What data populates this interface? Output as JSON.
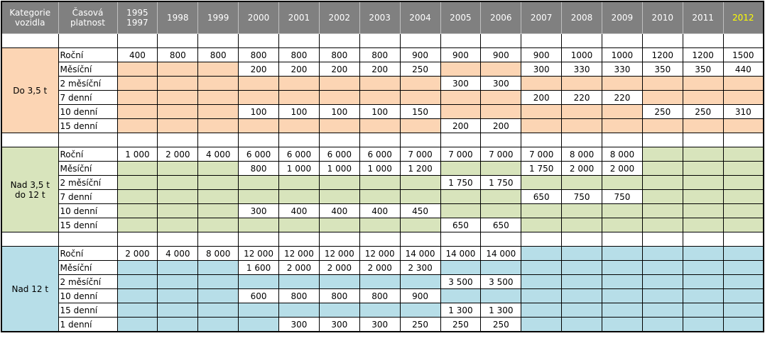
{
  "table": {
    "header": [
      "Kategorie\nvozidla",
      "Časová\nplatnost",
      "1995\n1997",
      "1998",
      "1999",
      "2000",
      "2001",
      "2002",
      "2003",
      "2004",
      "2005",
      "2006",
      "2007",
      "2008",
      "2009",
      "2010",
      "2011",
      "2012"
    ],
    "groups": [
      {
        "category": "Do 3,5 t",
        "rows": [
          {
            "period": "Roční",
            "cells": [
              "400",
              "800",
              "800",
              "800",
              "800",
              "800",
              "800",
              "900",
              "900",
              "900",
              "900",
              "1000",
              "1000",
              "1200",
              "1200",
              "1500"
            ]
          },
          {
            "period": "Měsíční",
            "cells": [
              null,
              null,
              null,
              "200",
              "200",
              "200",
              "200",
              "250",
              null,
              null,
              "300",
              "330",
              "330",
              "350",
              "350",
              "440"
            ]
          },
          {
            "period": "2 měsíční",
            "cells": [
              null,
              null,
              null,
              null,
              null,
              null,
              null,
              null,
              "300",
              "300",
              null,
              null,
              null,
              null,
              null,
              null
            ]
          },
          {
            "period": "7 denní",
            "cells": [
              null,
              null,
              null,
              null,
              null,
              null,
              null,
              null,
              null,
              null,
              "200",
              "220",
              "220",
              null,
              null,
              null
            ]
          },
          {
            "period": "10 denní",
            "cells": [
              null,
              null,
              null,
              "100",
              "100",
              "100",
              "100",
              "150",
              null,
              null,
              null,
              null,
              null,
              "250",
              "250",
              "310"
            ]
          },
          {
            "period": "15 denní",
            "cells": [
              null,
              null,
              null,
              null,
              null,
              null,
              null,
              null,
              "200",
              "200",
              null,
              null,
              null,
              null,
              null,
              null
            ]
          }
        ]
      },
      {
        "category": "Nad 3,5 t\ndo 12 t",
        "rows": [
          {
            "period": "Roční",
            "cells": [
              "1 000",
              "2 000",
              "4 000",
              "6 000",
              "6 000",
              "6 000",
              "6 000",
              "7 000",
              "7 000",
              "7 000",
              "7 000",
              "8 000",
              "8 000",
              null,
              null,
              null
            ]
          },
          {
            "period": "Měsíční",
            "cells": [
              null,
              null,
              null,
              "800",
              "1 000",
              "1 000",
              "1 000",
              "1 200",
              null,
              null,
              "1 750",
              "2 000",
              "2 000",
              null,
              null,
              null
            ]
          },
          {
            "period": "2 měsíční",
            "cells": [
              null,
              null,
              null,
              null,
              null,
              null,
              null,
              null,
              "1 750",
              "1 750",
              null,
              null,
              null,
              null,
              null,
              null
            ]
          },
          {
            "period": "7 denní",
            "cells": [
              null,
              null,
              null,
              null,
              null,
              null,
              null,
              null,
              null,
              null,
              "650",
              "750",
              "750",
              null,
              null,
              null
            ]
          },
          {
            "period": "10 denní",
            "cells": [
              null,
              null,
              null,
              "300",
              "400",
              "400",
              "400",
              "450",
              null,
              null,
              null,
              null,
              null,
              null,
              null,
              null
            ]
          },
          {
            "period": "15 denní",
            "cells": [
              null,
              null,
              null,
              null,
              null,
              null,
              null,
              null,
              "650",
              "650",
              null,
              null,
              null,
              null,
              null,
              null
            ]
          }
        ]
      },
      {
        "category": "Nad 12 t",
        "rows": [
          {
            "period": "Roční",
            "cells": [
              "2 000",
              "4 000",
              "8 000",
              "12 000",
              "12 000",
              "12 000",
              "12 000",
              "14 000",
              "14 000",
              "14 000",
              null,
              null,
              null,
              null,
              null,
              null
            ]
          },
          {
            "period": "Měsíční",
            "cells": [
              null,
              null,
              null,
              "1 600",
              "2 000",
              "2 000",
              "2 000",
              "2 300",
              null,
              null,
              null,
              null,
              null,
              null,
              null,
              null
            ]
          },
          {
            "period": "2 měsíční",
            "cells": [
              null,
              null,
              null,
              null,
              null,
              null,
              null,
              null,
              "3 500",
              "3 500",
              null,
              null,
              null,
              null,
              null,
              null
            ]
          },
          {
            "period": "10 denní",
            "cells": [
              null,
              null,
              null,
              "600",
              "800",
              "800",
              "800",
              "900",
              null,
              null,
              null,
              null,
              null,
              null,
              null,
              null
            ]
          },
          {
            "period": "15 denní",
            "cells": [
              null,
              null,
              null,
              null,
              null,
              null,
              null,
              null,
              "1 300",
              "1 300",
              null,
              null,
              null,
              null,
              null,
              null
            ]
          },
          {
            "period": "1 denní",
            "cells": [
              null,
              null,
              null,
              null,
              "300",
              "300",
              "300",
              "250",
              "250",
              "250",
              null,
              null,
              null,
              null,
              null,
              null
            ]
          }
        ]
      }
    ]
  }
}
